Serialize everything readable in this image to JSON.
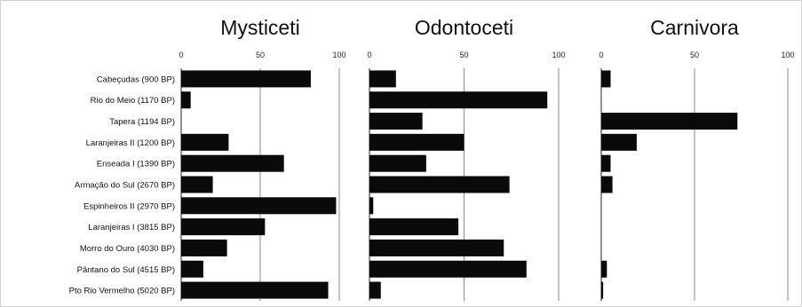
{
  "chart_data": {
    "type": "bar",
    "orientation": "horizontal",
    "categories": [
      "Cabeçudas (900 BP)",
      "Rio do Meio (1170 BP)",
      "Tapera (1194 BP)",
      "Laranjeiras II (1200 BP)",
      "Enseada I (1390 BP)",
      "Armação do Sul (2670 BP)",
      "Espinheiros II (2970 BP)",
      "Laranjeiras I (3815 BP)",
      "Morro do Ouro (4030 BP)",
      "Pântano do Sul (4515 BP)",
      "Pto Rio Vermelho (5020 BP)"
    ],
    "xlim": [
      0,
      100
    ],
    "xticks": [
      "0",
      "50",
      "100"
    ],
    "grid": true,
    "panels": [
      {
        "title": "Mysticeti",
        "values": [
          82,
          6,
          0,
          30,
          65,
          20,
          98,
          53,
          29,
          14,
          93
        ]
      },
      {
        "title": "Odontoceti",
        "values": [
          14,
          94,
          28,
          50,
          30,
          74,
          2,
          47,
          71,
          83,
          6
        ]
      },
      {
        "title": "Carnivora",
        "values": [
          5,
          0,
          73,
          19,
          5,
          6,
          0,
          0,
          0,
          3,
          1
        ]
      }
    ]
  }
}
